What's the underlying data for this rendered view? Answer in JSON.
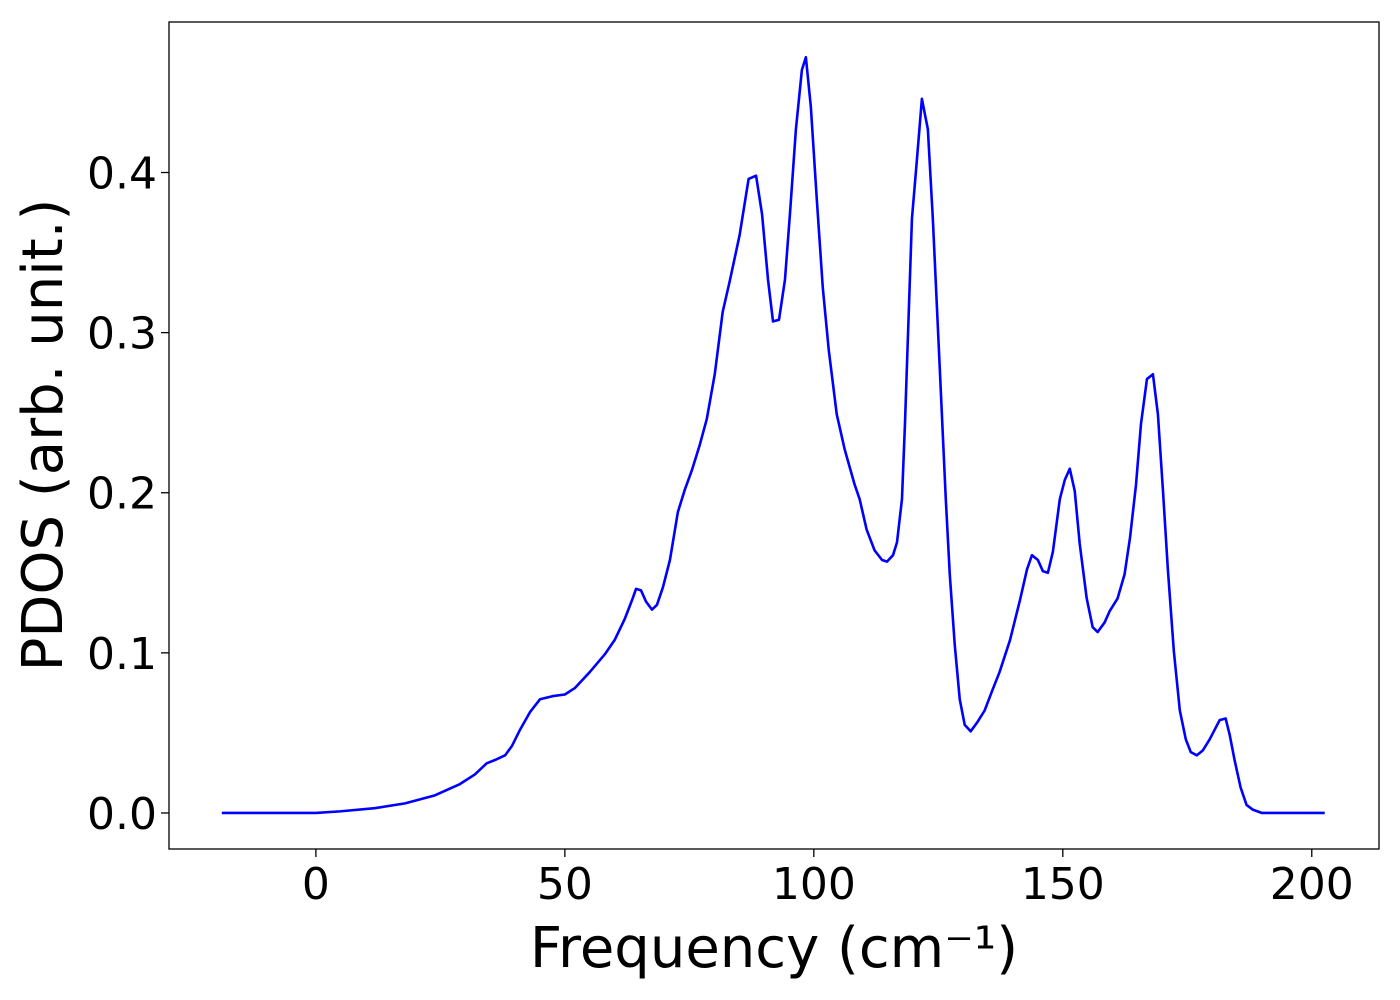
{
  "chart_data": {
    "type": "line",
    "xlabel": "Frequency (cm⁻¹)",
    "ylabel": "PDOS (arb. unit.)",
    "xlim": [
      -29.5,
      213.5
    ],
    "ylim": [
      -0.0225,
      0.494
    ],
    "xticks": [
      0,
      50,
      100,
      150,
      200
    ],
    "yticks": [
      {
        "value": 0,
        "label": "0.0"
      },
      0.1,
      0.2,
      0.3,
      0.4
    ],
    "grid": false,
    "x": [
      -18.9,
      0,
      4.8,
      11.8,
      17.9,
      23.9,
      28.9,
      31.9,
      34.3,
      35.9,
      38.0,
      39.4,
      41.0,
      43.0,
      45.0,
      47.6,
      50,
      52,
      55,
      58,
      60,
      62,
      63.5,
      64.3,
      65.3,
      66.3,
      67.5,
      68.5,
      69.7,
      71.1,
      72.7,
      74.1,
      75.5,
      77.1,
      78.5,
      80.1,
      81.7,
      83.1,
      85.1,
      86.9,
      88.4,
      89.6,
      90.8,
      91.8,
      93,
      94.2,
      95.2,
      96.4,
      97.6,
      98.4,
      99.4,
      100.6,
      101.8,
      103,
      104.6,
      106.2,
      108.2,
      109.2,
      110.6,
      112.2,
      113.7,
      114.7,
      115.9,
      116.7,
      117.7,
      118.3,
      119.7,
      120.7,
      121.7,
      122.9,
      123.9,
      125.3,
      126.5,
      127.3,
      128.3,
      129.3,
      130.3,
      131.5,
      132.9,
      134.3,
      135.9,
      137.3,
      139.4,
      141.4,
      142.8,
      143.8,
      145,
      146,
      147,
      148,
      149.4,
      150.4,
      151.4,
      152.4,
      153.4,
      154.8,
      156,
      157,
      158.4,
      159.4,
      161,
      162.4,
      163.5,
      164.7,
      165.7,
      166.9,
      168.1,
      169.1,
      170.1,
      171.1,
      172.3,
      173.5,
      174.7,
      175.7,
      176.9,
      178.1,
      179.5,
      180.5,
      181.5,
      182.7,
      183.5,
      184.5,
      185.7,
      186.9,
      188.2,
      190,
      202.6
    ],
    "series": [
      {
        "name": "PDOS",
        "color": "#0000ff",
        "values": [
          0,
          0,
          0.001,
          0.003,
          0.006,
          0.011,
          0.018,
          0.024,
          0.031,
          0.033,
          0.036,
          0.042,
          0.052,
          0.063,
          0.071,
          0.073,
          0.074,
          0.078,
          0.088,
          0.099,
          0.108,
          0.121,
          0.133,
          0.14,
          0.139,
          0.132,
          0.127,
          0.13,
          0.141,
          0.158,
          0.188,
          0.202,
          0.214,
          0.23,
          0.246,
          0.274,
          0.313,
          0.332,
          0.361,
          0.396,
          0.398,
          0.374,
          0.333,
          0.307,
          0.308,
          0.333,
          0.374,
          0.427,
          0.464,
          0.472,
          0.441,
          0.383,
          0.328,
          0.289,
          0.249,
          0.227,
          0.205,
          0.196,
          0.177,
          0.164,
          0.158,
          0.157,
          0.161,
          0.169,
          0.196,
          0.243,
          0.371,
          0.408,
          0.446,
          0.427,
          0.371,
          0.277,
          0.196,
          0.149,
          0.105,
          0.071,
          0.055,
          0.051,
          0.057,
          0.064,
          0.077,
          0.088,
          0.108,
          0.133,
          0.152,
          0.161,
          0.158,
          0.151,
          0.15,
          0.163,
          0.196,
          0.208,
          0.215,
          0.201,
          0.168,
          0.134,
          0.116,
          0.113,
          0.119,
          0.126,
          0.134,
          0.149,
          0.172,
          0.205,
          0.243,
          0.271,
          0.274,
          0.249,
          0.202,
          0.152,
          0.101,
          0.064,
          0.046,
          0.038,
          0.036,
          0.039,
          0.046,
          0.052,
          0.058,
          0.059,
          0.049,
          0.033,
          0.016,
          0.005,
          0.002,
          0,
          0
        ]
      }
    ]
  }
}
